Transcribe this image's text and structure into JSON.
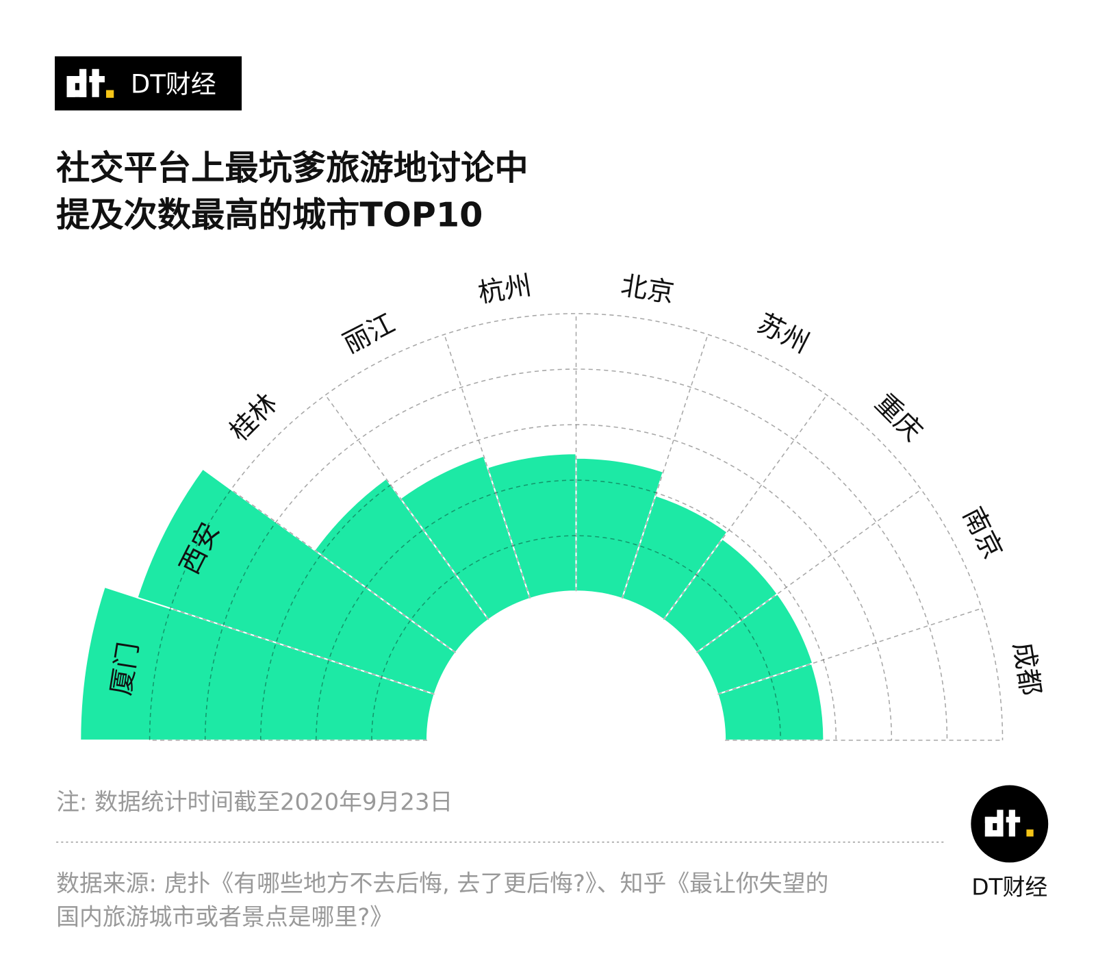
{
  "header": {
    "brand": "DT财经"
  },
  "chart_data": {
    "type": "polar_bar",
    "title": [
      "社交平台上最坑爹旅游地讨论中",
      "提及次数最高的城市TOP10"
    ],
    "categories": [
      "厦门",
      "西安",
      "桂林",
      "丽江",
      "杭州",
      "北京",
      "苏州",
      "重庆",
      "南京",
      "成都"
    ],
    "values": [
      6.25,
      5.63,
      3.14,
      2.7,
      2.48,
      2.4,
      1.95,
      1.8,
      1.8,
      1.78
    ],
    "color": "#1de9a5",
    "rlim": [
      0,
      5
    ],
    "rticks": [
      1,
      2,
      3,
      4,
      5
    ],
    "grid": true
  },
  "note": "注: 数据统计时间截至2020年9月23日",
  "source": [
    "数据来源: 虎扑《有哪些地方不去后悔, 去了更后悔?》、知乎《最让你失望的",
    "国内旅游城市或者景点是哪里?》"
  ],
  "footer": {
    "brand": "DT财经"
  }
}
